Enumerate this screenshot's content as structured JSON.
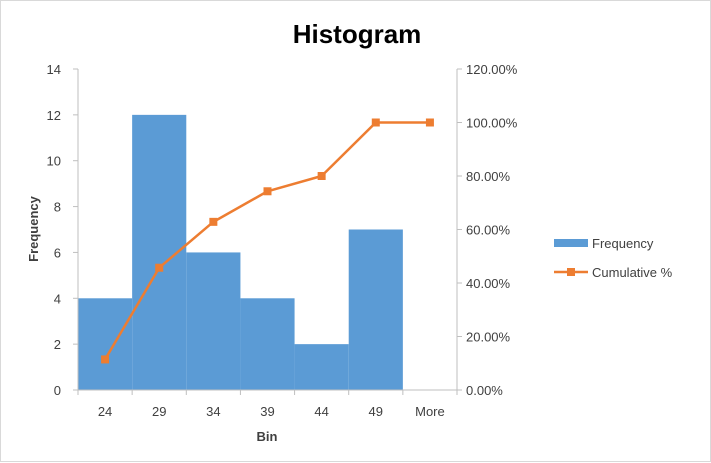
{
  "chart_data": {
    "type": "bar",
    "title": "Histogram",
    "xlabel": "Bin",
    "ylabel": "Frequency",
    "categories": [
      "24",
      "29",
      "34",
      "39",
      "44",
      "49",
      "More"
    ],
    "series": [
      {
        "name": "Frequency",
        "type": "bar",
        "axis": "left",
        "values": [
          4,
          12,
          6,
          4,
          2,
          7,
          0
        ],
        "color": "#5b9bd5"
      },
      {
        "name": "Cumulative %",
        "type": "line",
        "axis": "right",
        "values": [
          11.43,
          45.71,
          62.86,
          74.29,
          80.0,
          100.0,
          100.0
        ],
        "color": "#ed7d31"
      }
    ],
    "ylim": [
      0,
      14
    ],
    "yticks": [
      "0",
      "2",
      "4",
      "6",
      "8",
      "10",
      "12",
      "14"
    ],
    "y2lim": [
      0,
      120
    ],
    "y2ticks": [
      "0.00%",
      "20.00%",
      "40.00%",
      "60.00%",
      "80.00%",
      "100.00%",
      "120.00%"
    ],
    "grid": false,
    "legend_position": "right"
  }
}
